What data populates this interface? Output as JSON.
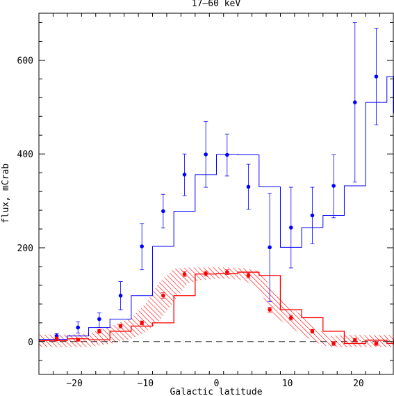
{
  "chart_data": {
    "type": "line",
    "title": "17–60 keV",
    "xlabel": "Galactic latitude",
    "ylabel": "flux, mCrab",
    "xlim": [
      -25,
      25
    ],
    "ylim": [
      -70,
      700
    ],
    "x_ticks": [
      -20,
      -10,
      0,
      10,
      20
    ],
    "y_ticks": [
      0,
      200,
      400,
      600
    ],
    "x_tick_labels": [
      "−20",
      "−10",
      "0",
      "10",
      "20"
    ],
    "y_tick_labels": [
      "0",
      "200",
      "400",
      "600"
    ],
    "zero_line": true,
    "grid": false,
    "series": [
      {
        "color": "#0000ff",
        "style": "histogram-with-errorbars",
        "x": [
          -22.5,
          -19.5,
          -16.5,
          -13.5,
          -10.5,
          -7.5,
          -4.5,
          -1.5,
          1.5,
          4.5,
          7.5,
          10.5,
          13.5,
          16.5,
          19.5,
          22.5
        ],
        "y": [
          12,
          30,
          48,
          98,
          203,
          278,
          356,
          399,
          398,
          330,
          201,
          243,
          269,
          332,
          510,
          565
        ],
        "err_low": [
          7,
          12,
          18,
          30,
          50,
          36,
          45,
          70,
          45,
          48,
          116,
          86,
          60,
          68,
          170,
          103
        ],
        "err_high": [
          5,
          12,
          13,
          30,
          48,
          36,
          44,
          70,
          44,
          48,
          115,
          86,
          60,
          66,
          170,
          103
        ],
        "step_edges": [
          -25,
          -21,
          -18,
          -15,
          -12,
          -9,
          -6,
          -3,
          0,
          3,
          6,
          9,
          12,
          15,
          18,
          21,
          24,
          25
        ],
        "step_values": [
          5,
          12,
          30,
          48,
          98,
          203,
          278,
          356,
          399,
          398,
          330,
          201,
          243,
          269,
          332,
          510,
          565,
          487
        ]
      },
      {
        "color": "#ff0000",
        "style": "histogram-with-uncertainty-band",
        "x": [
          -22.5,
          -19.5,
          -16.5,
          -13.5,
          -10.5,
          -7.5,
          -4.5,
          -1.5,
          1.5,
          4.5,
          7.5,
          10.5,
          13.5,
          16.5,
          19.5,
          22.5
        ],
        "y": [
          6,
          4,
          22,
          33,
          40,
          98,
          144,
          145,
          148,
          141,
          68,
          51,
          22,
          -4,
          3,
          -4
        ],
        "err": [
          4,
          3,
          4,
          4,
          4,
          6,
          5,
          5,
          5,
          5,
          5,
          5,
          4,
          4,
          4,
          4
        ],
        "step_edges": [
          -25,
          -21,
          -18,
          -15,
          -12,
          -9,
          -6,
          -3,
          0,
          3,
          6,
          9,
          12,
          15,
          18,
          21,
          24,
          25
        ],
        "step_values": [
          2,
          6,
          4,
          22,
          33,
          40,
          98,
          144,
          145,
          148,
          141,
          68,
          51,
          22,
          -4,
          3,
          -4,
          5
        ],
        "band_x": [
          -25,
          -21,
          -18,
          -15,
          -12,
          -10,
          -8,
          -6,
          -4,
          -2,
          0,
          2,
          4,
          6,
          8,
          10,
          12,
          14,
          16,
          18,
          20,
          22,
          25
        ],
        "band_low": [
          -12,
          -12,
          -12,
          -5,
          6,
          20,
          45,
          85,
          125,
          131,
          134,
          134,
          130,
          110,
          55,
          35,
          15,
          -2,
          -12,
          -12,
          -12,
          -12,
          -12
        ],
        "band_high": [
          15,
          15,
          17,
          32,
          50,
          80,
          128,
          155,
          158,
          158,
          158,
          158,
          156,
          150,
          110,
          80,
          55,
          28,
          12,
          14,
          14,
          14,
          14
        ]
      }
    ]
  }
}
